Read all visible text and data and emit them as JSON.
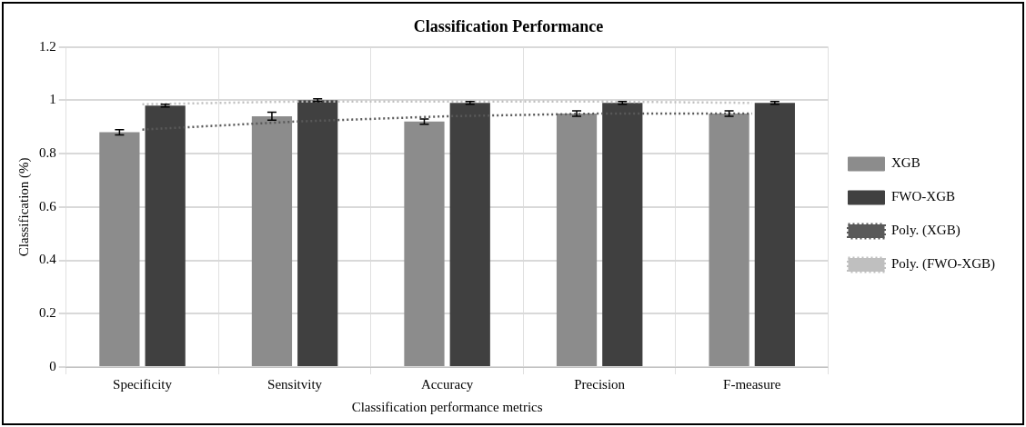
{
  "chart_data": {
    "type": "bar",
    "title": "Classification Performance",
    "xlabel": "Classification performance metrics",
    "ylabel": "Classification (%)",
    "categories": [
      "Specificity",
      "Sensitvity",
      "Accuracy",
      "Precision",
      "F-measure"
    ],
    "series": [
      {
        "name": "XGB",
        "color": "#8c8c8c",
        "values": [
          0.88,
          0.94,
          0.92,
          0.95,
          0.95
        ],
        "errors": [
          0.01,
          0.015,
          0.01,
          0.01,
          0.01
        ]
      },
      {
        "name": "FWO-XGB",
        "color": "#404040",
        "values": [
          0.98,
          1.0,
          0.99,
          0.99,
          0.99
        ],
        "errors": [
          0.005,
          0.005,
          0.005,
          0.005,
          0.005
        ]
      },
      {
        "name": "Poly. (XGB)",
        "type": "line",
        "color": "#595959",
        "line_style": "dotted",
        "values": [
          0.89,
          0.92,
          0.94,
          0.95,
          0.95
        ]
      },
      {
        "name": "Poly. (FWO-XGB)",
        "type": "line",
        "color": "#bfbfbf",
        "line_style": "dotted",
        "values": [
          0.985,
          0.995,
          0.995,
          0.995,
          0.99
        ]
      }
    ],
    "ylim": [
      0,
      1.2
    ],
    "yticks": [
      0,
      0.2,
      0.4,
      0.6,
      0.8,
      1,
      1.2
    ],
    "grid": true,
    "legend": "right",
    "marker": "none"
  }
}
